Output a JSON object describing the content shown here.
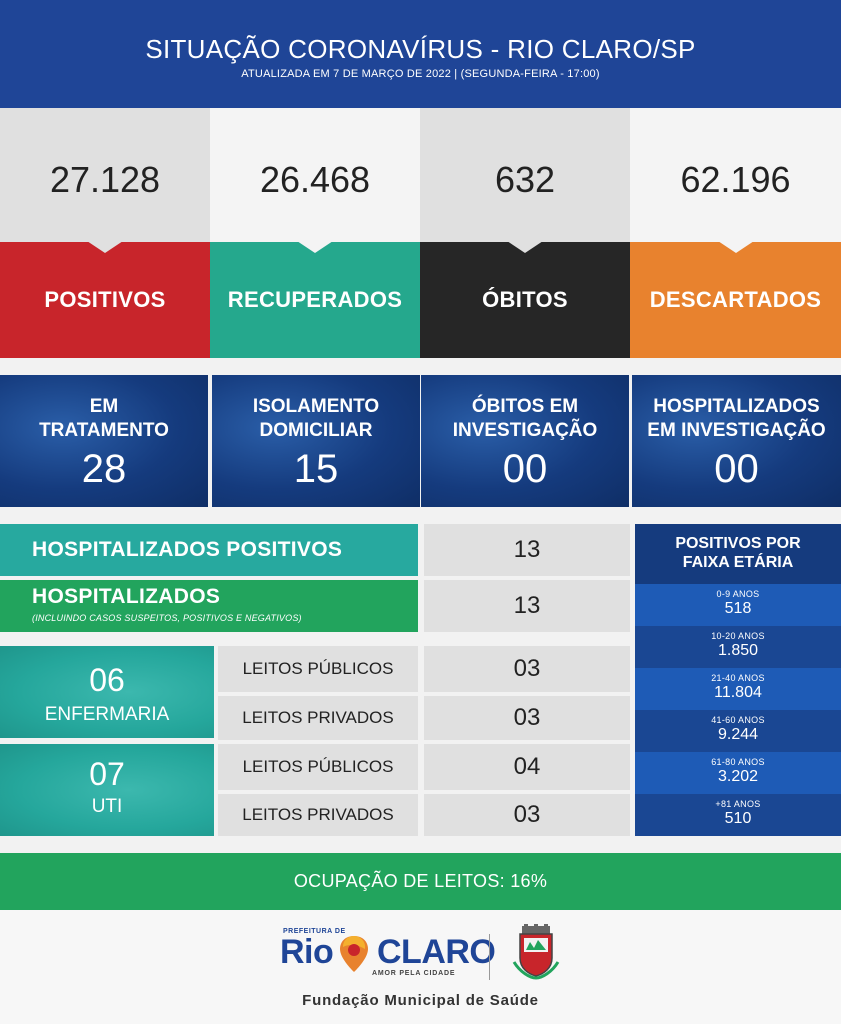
{
  "header": {
    "title": "SITUAÇÃO CORONAVÍRUS - RIO CLARO/SP",
    "subtitle": "ATUALIZADA EM 7 DE MARÇO DE 2022 | (SEGUNDA-FEIRA - 17:00)"
  },
  "stats": [
    {
      "value": "27.128",
      "label": "POSITIVOS",
      "color": "#c8252b"
    },
    {
      "value": "26.468",
      "label": "RECUPERADOS",
      "color": "#25a88d"
    },
    {
      "value": "632",
      "label": "ÓBITOS",
      "color": "#262626"
    },
    {
      "value": "62.196",
      "label": "DESCARTADOS",
      "color": "#e8822e"
    }
  ],
  "investigation": [
    {
      "label_line1": "EM",
      "label_line2": "TRATAMENTO",
      "value": "28"
    },
    {
      "label_line1": "ISOLAMENTO",
      "label_line2": "DOMICILIAR",
      "value": "15"
    },
    {
      "label_line1": "ÓBITOS EM",
      "label_line2": "INVESTIGAÇÃO",
      "value": "00"
    },
    {
      "label_line1": "HOSPITALIZADOS",
      "label_line2": "EM INVESTIGAÇÃO",
      "value": "00"
    }
  ],
  "hospitalized": {
    "positive_label": "HOSPITALIZADOS POSITIVOS",
    "positive_value": "13",
    "all_label": "HOSPITALIZADOS",
    "all_note": "(INCLUINDO CASOS SUSPEITOS, POSITIVOS E NEGATIVOS)",
    "all_value": "13"
  },
  "beds": {
    "ward": {
      "total": "06",
      "name": "ENFERMARIA",
      "public_label": "LEITOS PÚBLICOS",
      "public_value": "03",
      "private_label": "LEITOS PRIVADOS",
      "private_value": "03"
    },
    "icu": {
      "total": "07",
      "name": "UTI",
      "public_label": "LEITOS PÚBLICOS",
      "public_value": "04",
      "private_label": "LEITOS PRIVADOS",
      "private_value": "03"
    }
  },
  "age": {
    "title_line1": "POSITIVOS POR",
    "title_line2": "FAIXA ETÁRIA",
    "rows": [
      {
        "range": "0-9 ANOS",
        "value": "518"
      },
      {
        "range": "10-20 ANOS",
        "value": "1.850"
      },
      {
        "range": "21-40 ANOS",
        "value": "11.804"
      },
      {
        "range": "41-60 ANOS",
        "value": "9.244"
      },
      {
        "range": "61-80 ANOS",
        "value": "3.202"
      },
      {
        "range": "+81 ANOS",
        "value": "510"
      }
    ]
  },
  "occupancy": "OCUPAÇÃO DE LEITOS: 16%",
  "footer": {
    "logo_small": "PREFEITURA DE",
    "logo_rio": "Rio",
    "logo_claro": "CLARO",
    "logo_tagline": "AMOR PELA CIDADE",
    "org": "Fundação Municipal de Saúde",
    "icons": [
      "map-pin-icon",
      "city-crest-icon"
    ]
  }
}
